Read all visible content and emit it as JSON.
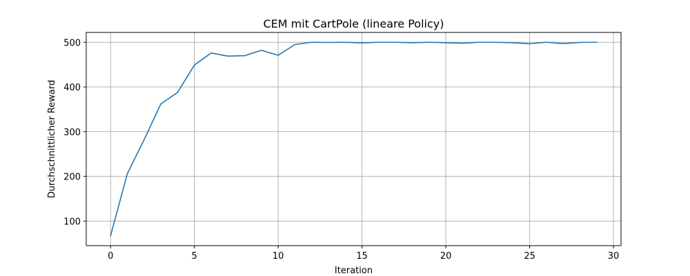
{
  "chart_data": {
    "type": "line",
    "title": "CEM mit CartPole (lineare Policy)",
    "xlabel": "Iteration",
    "ylabel": "Durchschnittlicher Reward",
    "xlim": [
      -1.45,
      30.45
    ],
    "ylim": [
      45,
      522
    ],
    "xticks": [
      0,
      5,
      10,
      15,
      20,
      25,
      30
    ],
    "yticks": [
      100,
      200,
      300,
      400,
      500
    ],
    "grid": true,
    "series": [
      {
        "color": "#1f77b4",
        "x": [
          0,
          1,
          2,
          3,
          4,
          5,
          6,
          7,
          8,
          9,
          10,
          11,
          12,
          13,
          14,
          15,
          16,
          17,
          18,
          19,
          20,
          21,
          22,
          23,
          24,
          25,
          26,
          27,
          28,
          29
        ],
        "values": [
          67,
          206,
          282,
          362,
          388,
          449,
          476,
          469,
          470,
          482,
          471,
          495,
          500,
          499.6,
          500,
          498.6,
          500,
          500,
          499,
          500,
          499,
          498,
          500,
          500,
          499,
          496.7,
          500,
          497,
          499.6,
          500
        ]
      }
    ]
  }
}
